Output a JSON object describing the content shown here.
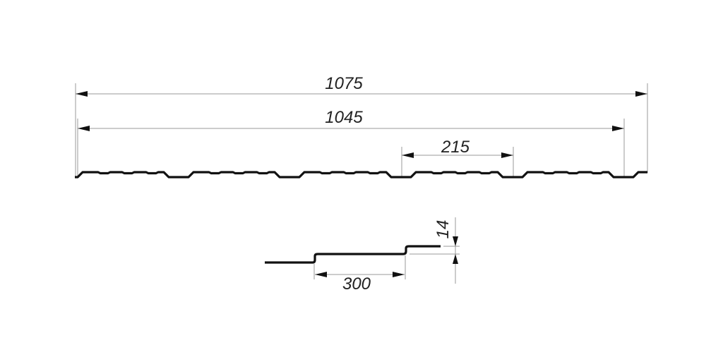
{
  "dimensions": {
    "overall_width": "1075",
    "useful_width": "1045",
    "wave_pitch": "215",
    "step_length": "300",
    "step_height": "14"
  },
  "colors": {
    "profile": "#111111",
    "dimension_lines": "#9a9a9a"
  }
}
